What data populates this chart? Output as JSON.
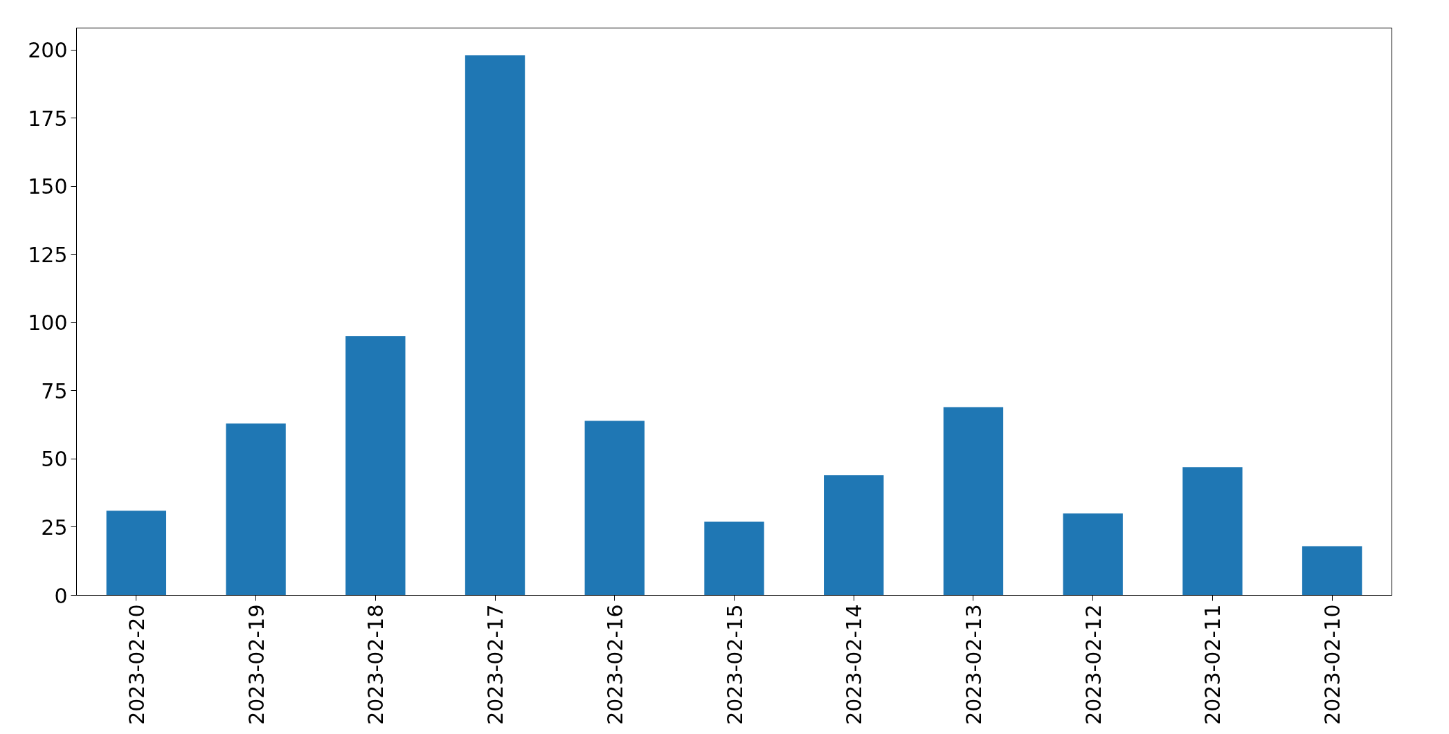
{
  "chart_data": {
    "type": "bar",
    "categories": [
      "2023-02-20",
      "2023-02-19",
      "2023-02-18",
      "2023-02-17",
      "2023-02-16",
      "2023-02-15",
      "2023-02-14",
      "2023-02-13",
      "2023-02-12",
      "2023-02-11",
      "2023-02-10"
    ],
    "values": [
      31,
      63,
      95,
      198,
      64,
      27,
      44,
      69,
      30,
      47,
      18
    ],
    "color": "#1f77b4",
    "ylim": [
      0,
      208
    ],
    "yticks": [
      0,
      25,
      50,
      75,
      100,
      125,
      150,
      175,
      200
    ],
    "grid": false
  }
}
